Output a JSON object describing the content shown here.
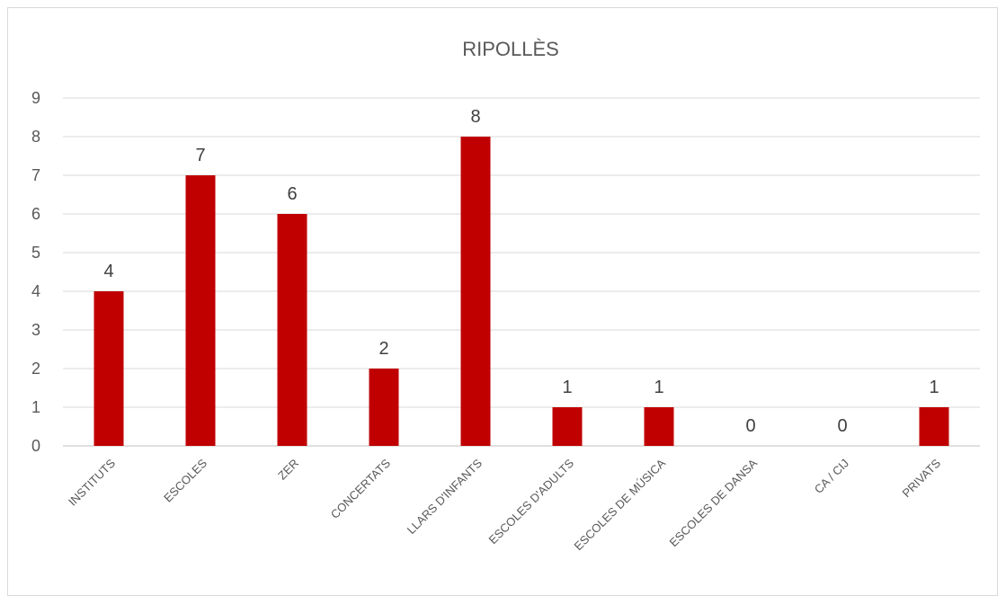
{
  "chart_data": {
    "type": "bar",
    "title": "RIPOLLÈS",
    "categories": [
      "INSTITUTS",
      "ESCOLES",
      "ZER",
      "CONCERTATS",
      "LLARS D'INFANTS",
      "ESCOLES D'ADULTS",
      "ESCOLES DE MÚSICA",
      "ESCOLES DE DANSA",
      "CA / CIJ",
      "PRIVATS"
    ],
    "values": [
      4,
      7,
      6,
      2,
      8,
      1,
      1,
      0,
      0,
      1
    ],
    "ylim": [
      0,
      9
    ],
    "yticks": [
      0,
      1,
      2,
      3,
      4,
      5,
      6,
      7,
      8,
      9
    ],
    "grid": true,
    "legend": "none",
    "bar_color": "#c00000"
  }
}
